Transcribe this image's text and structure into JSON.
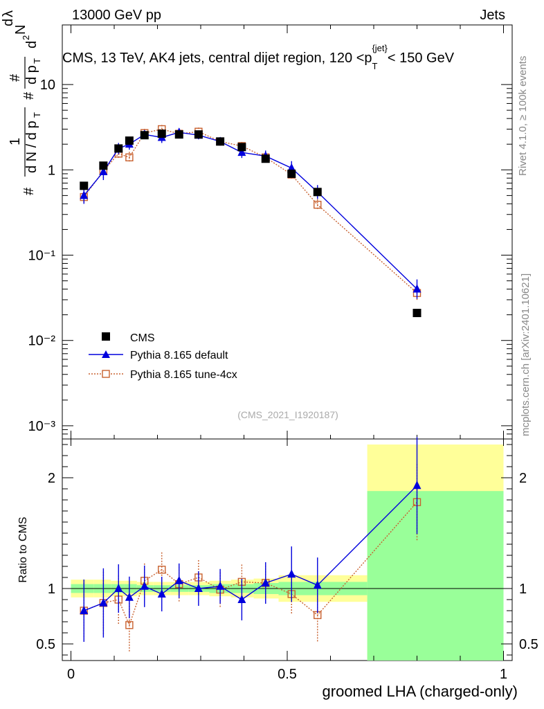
{
  "header": {
    "left": "13000 GeV pp",
    "right": "Jets",
    "title": "CMS, 13 TeV, AK4 jets, central dijet region, 120 <p",
    "title_sub": "T",
    "title_sup": "{jet}",
    "title_end": "< 150 GeV"
  },
  "side_labels": {
    "rivet": "Rivet 4.1.0, ≥ 100k events",
    "mcplots": "mcplots.cern.ch [arXiv:2401.10621]"
  },
  "watermark": "(CMS_2021_I1920187)",
  "axes": {
    "ylabel_main": "1/N dN/dp_T dp_T/dλ",
    "ylabel_ratio": "Ratio to CMS",
    "xlabel": "groomed LHA (charged-only)",
    "x_ticks": [
      "0",
      "0.5",
      "1"
    ],
    "y_ticks_main": [
      "10",
      "1",
      "10⁻¹",
      "10⁻²",
      "10⁻³"
    ],
    "y_ticks_ratio": [
      "2",
      "1",
      "0.5"
    ]
  },
  "legend": {
    "entries": [
      "CMS",
      "Pythia 8.165 default",
      "Pythia 8.165 tune-4cx"
    ]
  },
  "colors": {
    "data": "#000000",
    "default": "#0000dd",
    "tune": "#c8602e",
    "band_outer": "#ffff99",
    "band_inner": "#99ff99"
  },
  "chart_data": {
    "type": "scatter",
    "x_range": [
      -0.02,
      1.02
    ],
    "main": {
      "yscale": "log",
      "ylim": [
        0.0007,
        50
      ],
      "series": [
        {
          "name": "CMS",
          "x": [
            0.03,
            0.075,
            0.11,
            0.135,
            0.17,
            0.21,
            0.25,
            0.295,
            0.345,
            0.395,
            0.45,
            0.51,
            0.57,
            0.8
          ],
          "y": [
            0.65,
            1.12,
            1.78,
            2.2,
            2.55,
            2.65,
            2.6,
            2.6,
            2.15,
            1.85,
            1.35,
            0.9,
            0.55,
            0.021
          ]
        },
        {
          "name": "Pythia 8.165 default",
          "x": [
            0.03,
            0.075,
            0.11,
            0.135,
            0.17,
            0.21,
            0.25,
            0.295,
            0.345,
            0.395,
            0.45,
            0.51,
            0.57,
            0.8
          ],
          "y": [
            0.5,
            0.95,
            1.78,
            2.0,
            2.6,
            2.4,
            2.75,
            2.55,
            2.15,
            1.6,
            1.45,
            1.05,
            0.55,
            0.04
          ]
        },
        {
          "name": "Pythia 8.165 tune-4cx",
          "x": [
            0.03,
            0.075,
            0.11,
            0.135,
            0.17,
            0.21,
            0.25,
            0.295,
            0.345,
            0.395,
            0.45,
            0.51,
            0.57,
            0.8
          ],
          "y": [
            0.48,
            0.97,
            1.55,
            1.4,
            2.7,
            3.0,
            2.65,
            2.8,
            2.15,
            1.9,
            1.4,
            0.88,
            0.39,
            0.036
          ]
        }
      ]
    },
    "ratio": {
      "ylim": [
        0.35,
        2.35
      ],
      "reference": 1,
      "series": [
        {
          "name": "Pythia 8.165 default",
          "x": [
            0.03,
            0.075,
            0.11,
            0.135,
            0.17,
            0.21,
            0.25,
            0.295,
            0.345,
            0.395,
            0.45,
            0.51,
            0.57,
            0.8
          ],
          "y": [
            0.8,
            0.87,
            1.0,
            0.92,
            1.02,
            0.95,
            1.07,
            1.0,
            1.02,
            0.9,
            1.05,
            1.13,
            1.03,
            1.93
          ]
        },
        {
          "name": "Pythia 8.165 tune-4cx",
          "x": [
            0.03,
            0.075,
            0.11,
            0.135,
            0.17,
            0.21,
            0.25,
            0.295,
            0.345,
            0.395,
            0.45,
            0.51,
            0.57,
            0.8
          ],
          "y": [
            0.8,
            0.87,
            0.9,
            0.67,
            1.07,
            1.17,
            1.04,
            1.1,
            0.99,
            1.06,
            1.05,
            0.95,
            0.76,
            1.78
          ]
        }
      ]
    }
  }
}
